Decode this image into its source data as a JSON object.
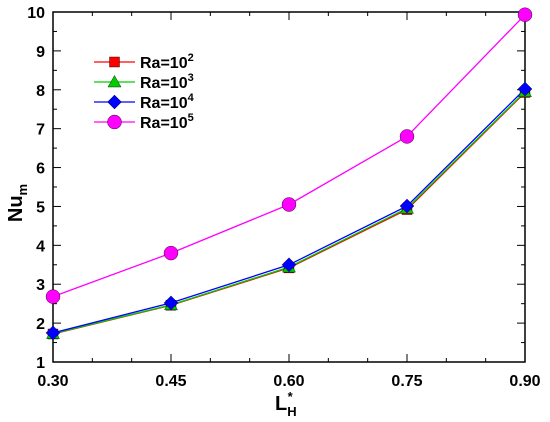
{
  "chart_data": {
    "type": "line",
    "x": [
      0.3,
      0.45,
      0.6,
      0.75,
      0.9
    ],
    "x_tick_labels": [
      "0.30",
      "0.45",
      "0.60",
      "0.75",
      "0.90"
    ],
    "y_ticks": [
      "1",
      "2",
      "3",
      "4",
      "5",
      "6",
      "7",
      "8",
      "9",
      "10"
    ],
    "xlim": [
      0.3,
      0.9
    ],
    "ylim": [
      1,
      10
    ],
    "xlabel": {
      "main": "L",
      "sub": "H",
      "sup": "*"
    },
    "ylabel": {
      "main": "Nu",
      "sub": "m"
    },
    "grid": false,
    "legend_position": "top-left",
    "series": [
      {
        "name": {
          "base": "Ra=10",
          "exp": "2"
        },
        "marker": "square",
        "color": "#ff0000",
        "values": [
          1.72,
          2.46,
          3.42,
          4.92,
          7.93
        ]
      },
      {
        "name": {
          "base": "Ra=10",
          "exp": "3"
        },
        "marker": "triangle",
        "color": "#00cc00",
        "values": [
          1.73,
          2.47,
          3.44,
          4.95,
          7.95
        ]
      },
      {
        "name": {
          "base": "Ra=10",
          "exp": "4"
        },
        "marker": "diamond",
        "color": "#0000ff",
        "values": [
          1.75,
          2.52,
          3.5,
          5.01,
          8.02
        ]
      },
      {
        "name": {
          "base": "Ra=10",
          "exp": "5"
        },
        "marker": "circle",
        "color": "#ff00ff",
        "values": [
          2.68,
          3.8,
          5.05,
          6.8,
          9.93
        ]
      }
    ]
  }
}
